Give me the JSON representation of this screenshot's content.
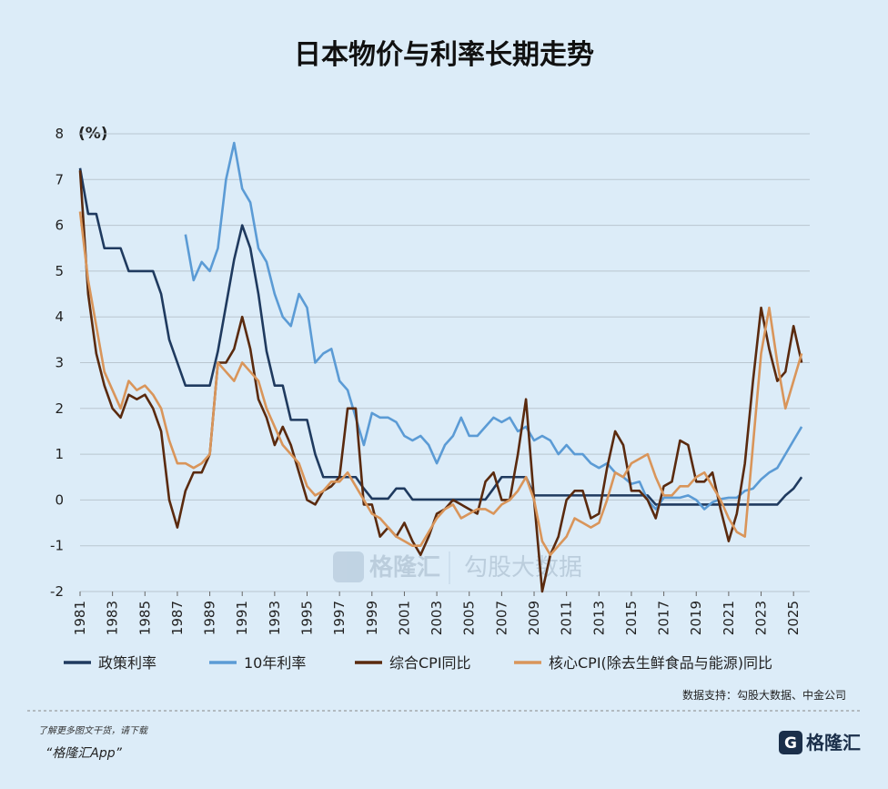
{
  "chart_data": {
    "type": "line",
    "title": "日本物价与利率长期走势",
    "y_label": "(%)",
    "x": [
      1981,
      1981.5,
      1982,
      1982.5,
      1983,
      1983.5,
      1984,
      1984.5,
      1985,
      1985.5,
      1986,
      1986.5,
      1987,
      1987.5,
      1988,
      1988.5,
      1989,
      1989.5,
      1990,
      1990.5,
      1991,
      1991.5,
      1992,
      1992.5,
      1993,
      1993.5,
      1994,
      1994.5,
      1995,
      1995.5,
      1996,
      1996.5,
      1997,
      1997.5,
      1998,
      1998.5,
      1999,
      1999.5,
      2000,
      2000.5,
      2001,
      2001.5,
      2002,
      2002.5,
      2003,
      2003.5,
      2004,
      2004.5,
      2005,
      2005.5,
      2006,
      2006.5,
      2007,
      2007.5,
      2008,
      2008.5,
      2009,
      2009.5,
      2010,
      2010.5,
      2011,
      2011.5,
      2012,
      2012.5,
      2013,
      2013.5,
      2014,
      2014.5,
      2015,
      2015.5,
      2016,
      2016.5,
      2017,
      2017.5,
      2018,
      2018.5,
      2019,
      2019.5,
      2020,
      2020.5,
      2021,
      2021.5,
      2022,
      2022.5,
      2023,
      2023.5,
      2024,
      2024.5,
      2025,
      2025.5
    ],
    "series": [
      {
        "name": "政策利率",
        "color": "#1f3a5f",
        "values": [
          7.25,
          6.25,
          6.25,
          5.5,
          5.5,
          5.5,
          5.0,
          5.0,
          5.0,
          5.0,
          4.5,
          3.5,
          3.0,
          2.5,
          2.5,
          2.5,
          2.5,
          3.25,
          4.25,
          5.25,
          6.0,
          5.5,
          4.5,
          3.25,
          2.5,
          2.5,
          1.75,
          1.75,
          1.75,
          1.0,
          0.5,
          0.5,
          0.5,
          0.5,
          0.5,
          0.25,
          0.03,
          0.03,
          0.03,
          0.25,
          0.25,
          0.01,
          0.01,
          0.01,
          0.01,
          0.01,
          0.01,
          0.01,
          0.01,
          0.01,
          0.01,
          0.25,
          0.5,
          0.5,
          0.5,
          0.5,
          0.1,
          0.1,
          0.1,
          0.1,
          0.1,
          0.1,
          0.1,
          0.1,
          0.1,
          0.1,
          0.1,
          0.1,
          0.1,
          0.1,
          0.1,
          -0.1,
          -0.1,
          -0.1,
          -0.1,
          -0.1,
          -0.1,
          -0.1,
          -0.1,
          -0.1,
          -0.1,
          -0.1,
          -0.1,
          -0.1,
          -0.1,
          -0.1,
          -0.1,
          0.1,
          0.25,
          0.5
        ]
      },
      {
        "name": "10年利率",
        "color": "#5b9bd5",
        "values": [
          null,
          null,
          null,
          null,
          null,
          null,
          null,
          null,
          null,
          null,
          null,
          null,
          null,
          5.8,
          4.8,
          5.2,
          5.0,
          5.5,
          7.0,
          7.8,
          6.8,
          6.5,
          5.5,
          5.2,
          4.5,
          4.0,
          3.8,
          4.5,
          4.2,
          3.0,
          3.2,
          3.3,
          2.6,
          2.4,
          1.8,
          1.2,
          1.9,
          1.8,
          1.8,
          1.7,
          1.4,
          1.3,
          1.4,
          1.2,
          0.8,
          1.2,
          1.4,
          1.8,
          1.4,
          1.4,
          1.6,
          1.8,
          1.7,
          1.8,
          1.5,
          1.6,
          1.3,
          1.4,
          1.3,
          1.0,
          1.2,
          1.0,
          1.0,
          0.8,
          0.7,
          0.8,
          0.6,
          0.5,
          0.35,
          0.4,
          0.0,
          -0.2,
          0.05,
          0.05,
          0.05,
          0.1,
          0.0,
          -0.2,
          -0.05,
          0.02,
          0.05,
          0.05,
          0.2,
          0.25,
          0.45,
          0.6,
          0.7,
          1.0,
          1.3,
          1.6
        ]
      },
      {
        "name": "综合CPI同比",
        "color": "#5a2a0e",
        "values": [
          7.2,
          4.5,
          3.2,
          2.5,
          2.0,
          1.8,
          2.3,
          2.2,
          2.3,
          2.0,
          1.5,
          0.0,
          -0.6,
          0.2,
          0.6,
          0.6,
          1.0,
          3.0,
          3.0,
          3.3,
          4.0,
          3.3,
          2.2,
          1.8,
          1.2,
          1.6,
          1.2,
          0.6,
          0.0,
          -0.1,
          0.2,
          0.3,
          0.5,
          2.0,
          2.0,
          -0.1,
          -0.1,
          -0.8,
          -0.6,
          -0.8,
          -0.5,
          -0.9,
          -1.2,
          -0.8,
          -0.3,
          -0.2,
          0.0,
          -0.1,
          -0.2,
          -0.3,
          0.4,
          0.6,
          0.0,
          0.0,
          1.0,
          2.2,
          0.0,
          -2.0,
          -1.2,
          -0.8,
          0.0,
          0.2,
          0.2,
          -0.4,
          -0.3,
          0.7,
          1.5,
          1.2,
          0.2,
          0.2,
          0.0,
          -0.4,
          0.3,
          0.4,
          1.3,
          1.2,
          0.4,
          0.4,
          0.6,
          -0.2,
          -0.9,
          -0.3,
          0.8,
          2.6,
          4.2,
          3.3,
          2.6,
          2.8,
          3.8,
          3.0
        ]
      },
      {
        "name": "核心CPI(除去生鲜食品与能源)同比",
        "color": "#d9955a",
        "values": [
          6.3,
          4.8,
          3.8,
          2.8,
          2.4,
          2.0,
          2.6,
          2.4,
          2.5,
          2.3,
          2.0,
          1.3,
          0.8,
          0.8,
          0.7,
          0.8,
          1.0,
          3.0,
          2.8,
          2.6,
          3.0,
          2.8,
          2.6,
          2.0,
          1.6,
          1.2,
          1.0,
          0.8,
          0.3,
          0.1,
          0.2,
          0.4,
          0.4,
          0.6,
          0.3,
          0.0,
          -0.3,
          -0.4,
          -0.6,
          -0.8,
          -0.9,
          -1.0,
          -1.0,
          -0.7,
          -0.4,
          -0.2,
          -0.1,
          -0.4,
          -0.3,
          -0.2,
          -0.2,
          -0.3,
          -0.1,
          0.0,
          0.2,
          0.5,
          0.0,
          -0.9,
          -1.2,
          -1.0,
          -0.8,
          -0.4,
          -0.5,
          -0.6,
          -0.5,
          0.0,
          0.6,
          0.5,
          0.8,
          0.9,
          1.0,
          0.5,
          0.1,
          0.1,
          0.3,
          0.3,
          0.5,
          0.6,
          0.3,
          0.0,
          -0.4,
          -0.7,
          -0.8,
          1.2,
          3.2,
          4.2,
          3.0,
          2.0,
          2.6,
          3.2
        ]
      }
    ],
    "xlim": [
      1981,
      2026
    ],
    "xticks": [
      1981,
      1983,
      1985,
      1987,
      1989,
      1991,
      1993,
      1995,
      1997,
      1999,
      2001,
      2003,
      2005,
      2007,
      2009,
      2011,
      2013,
      2015,
      2017,
      2019,
      2021,
      2023,
      2025
    ],
    "ylim": [
      -2,
      8
    ],
    "yticks": [
      -2,
      -1,
      0,
      1,
      2,
      3,
      4,
      5,
      6,
      7,
      8
    ],
    "grid": true,
    "legend": "bottom"
  },
  "watermark": [
    "格隆汇",
    "勾股大数据"
  ],
  "source": "数据支持：勾股大数据、中金公司",
  "footer": {
    "line1": "了解更多图文干货，请下载",
    "line2": "“格隆汇App”"
  },
  "logo": "格隆汇"
}
